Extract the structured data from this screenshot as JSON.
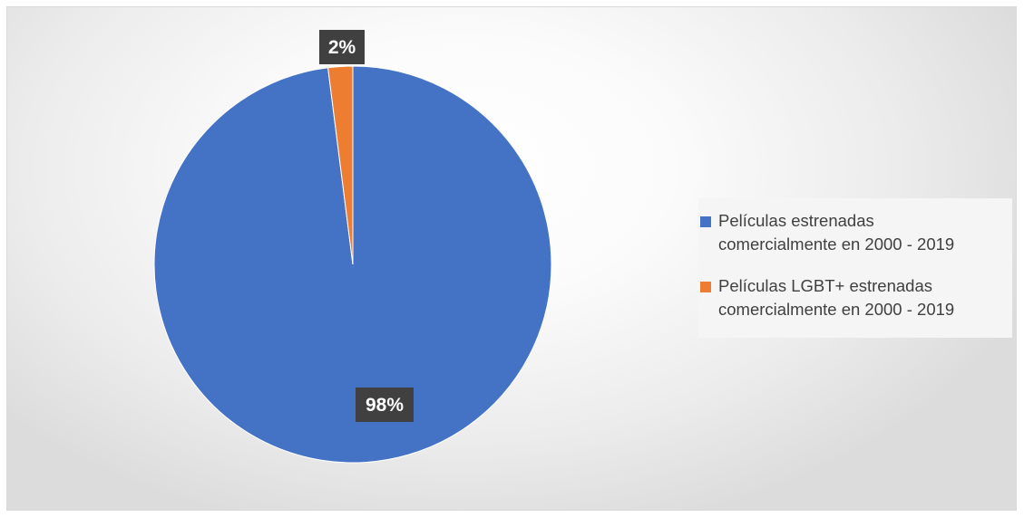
{
  "chart_data": {
    "type": "pie",
    "title": "",
    "series": [
      {
        "values": [
          98,
          2
        ],
        "labels": [
          "98%",
          "2%"
        ]
      }
    ],
    "categories": [
      "Películas estrenadas comercialmente en 2000 - 2019",
      "Películas LGBT+ estrenadas comercialmente en 2000 - 2019"
    ],
    "colors": [
      "#4472C4",
      "#ED7D31"
    ],
    "data_labels": [
      "98%",
      "2%"
    ],
    "legend_position": "right"
  },
  "legend": {
    "item1_line1": "Películas estrenadas",
    "item1_line2": "comercialmente en 2000 - 2019",
    "item2_line1": "Películas LGBT+ estrenadas",
    "item2_line2": "comercialmente en 2000 - 2019"
  }
}
